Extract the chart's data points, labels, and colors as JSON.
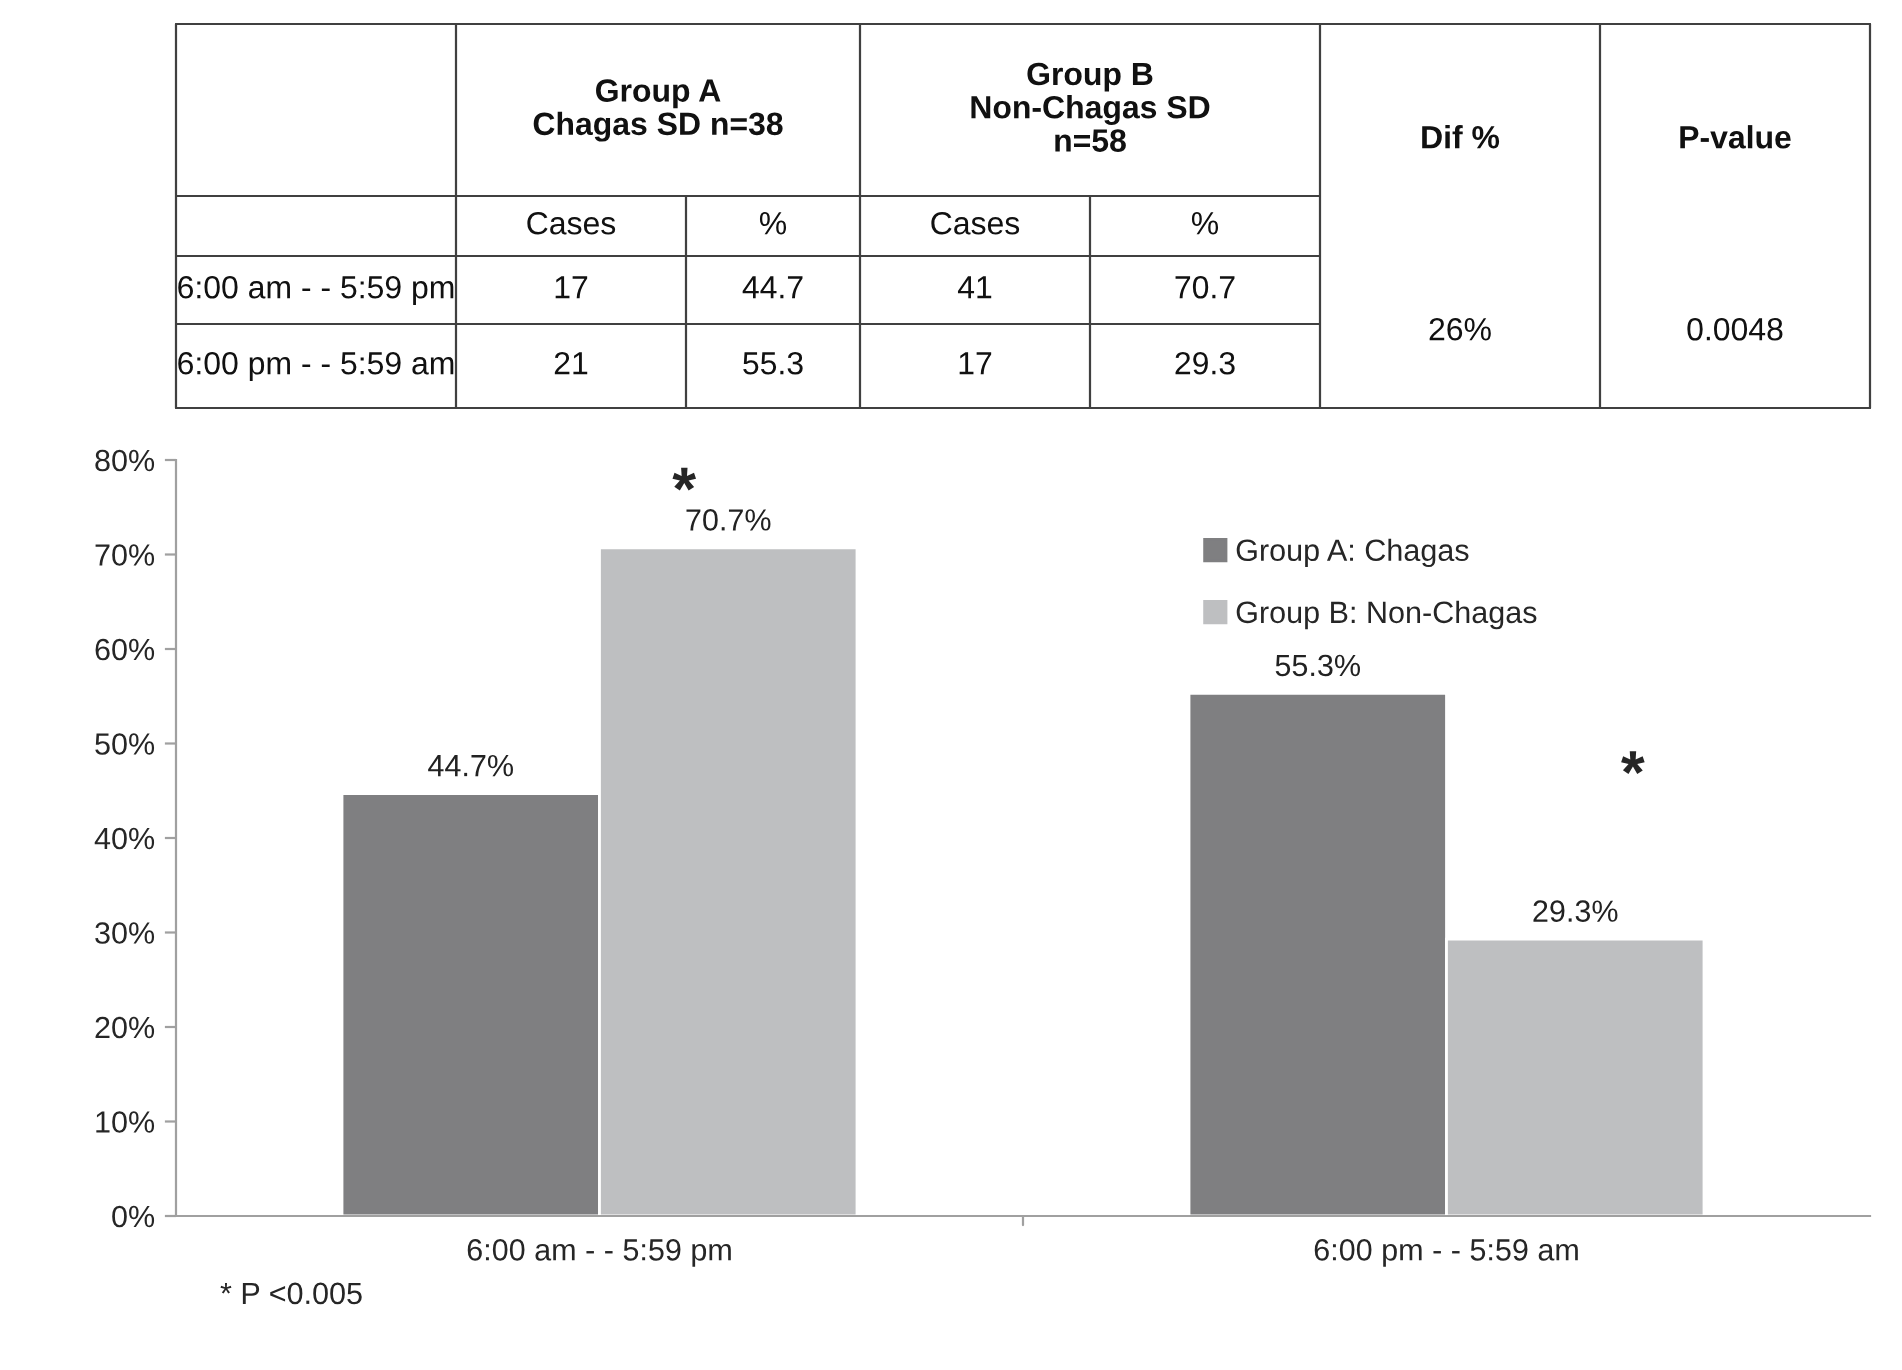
{
  "chart_data": [
    {
      "type": "other",
      "annotations": [
        "Group A\nChagas SD n=38",
        "Group B\nNon-Chagas SD\nn=58",
        "Dif %",
        "P-value",
        "Cases",
        "%",
        "Cases",
        "%",
        "6:00 am - - 5:59 pm",
        "17",
        "44.7",
        "41",
        "70.7",
        "6:00 pm - - 5:59 am",
        "21",
        "55.3",
        "17",
        "29.3",
        "26%",
        "0.0048"
      ]
    },
    {
      "type": "bar",
      "categories": [
        "6:00 am - - 5:59 pm",
        "6:00 pm - - 5:59 am"
      ],
      "series": [
        {
          "name": "Group A: Chagas",
          "color": "#7f7f81",
          "values": [
            44.7,
            55.3
          ],
          "value_labels": [
            "44.7%",
            "55.3%"
          ]
        },
        {
          "name": "Group B: Non-Chagas",
          "color": "#bebfc1",
          "values": [
            70.7,
            29.3
          ],
          "value_labels": [
            "70.7%",
            "29.3%"
          ]
        }
      ],
      "ylim": [
        0,
        80
      ],
      "yticks": [
        {
          "value": 0,
          "label": "0%"
        },
        {
          "value": 10,
          "label": "10%"
        },
        {
          "value": 20,
          "label": "20%"
        },
        {
          "value": 30,
          "label": "30%"
        },
        {
          "value": 40,
          "label": "40%"
        },
        {
          "value": 50,
          "label": "50%"
        },
        {
          "value": 60,
          "label": "60%"
        },
        {
          "value": 70,
          "label": "70%"
        },
        {
          "value": 80,
          "label": "80%"
        }
      ],
      "legend": "top right",
      "grid": false,
      "annotations": [
        "*",
        "*",
        "* P <0.005"
      ]
    }
  ]
}
